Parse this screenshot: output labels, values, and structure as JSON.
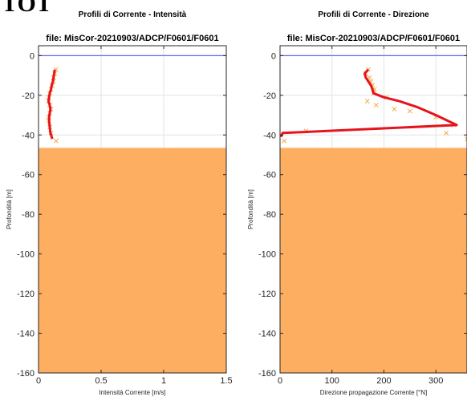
{
  "page": {
    "heading_fragment": "TOT"
  },
  "chart_data": [
    {
      "type": "line",
      "title": "Profili di Corrente - Intensità",
      "subtitle": "file: MisCor-20210903/ADCP/F0601/F0601",
      "xlabel": "Intensità  Corrente [m/s]",
      "ylabel": "Profondità  [m]",
      "xlim": [
        0,
        1.5
      ],
      "ylim": [
        -160,
        5
      ],
      "xticks": [
        "0",
        "0.5",
        "1",
        "1.5"
      ],
      "yticks": [
        "0",
        "-20",
        "-40",
        "-60",
        "-80",
        "-100",
        "-120",
        "-140",
        "-160"
      ],
      "grid": true,
      "surface_line": {
        "y": 0,
        "color": "#5b6cf0"
      },
      "seabed": {
        "top": -46.5,
        "color": "#fdae61"
      },
      "series": [
        {
          "style": "markers",
          "marker": "x",
          "color": "#f7a84a",
          "x": [
            0.14,
            0.13,
            0.12,
            0.12,
            0.11,
            0.1,
            0.09,
            0.08,
            0.08,
            0.09,
            0.1,
            0.09,
            0.08,
            0.08,
            0.09,
            0.1,
            0.14
          ],
          "y": [
            -7,
            -9,
            -11,
            -13,
            -15,
            -17,
            -19,
            -21,
            -23,
            -25,
            -27,
            -29,
            -31,
            -33,
            -36,
            -39,
            -43
          ]
        },
        {
          "style": "line",
          "color": "#e6141d",
          "x": [
            0.13,
            0.125,
            0.12,
            0.115,
            0.105,
            0.1,
            0.09,
            0.085,
            0.08,
            0.09,
            0.095,
            0.09,
            0.085,
            0.085,
            0.09,
            0.095,
            0.11
          ],
          "y": [
            -7,
            -9,
            -11,
            -13,
            -15,
            -17,
            -19,
            -21,
            -23,
            -25,
            -27,
            -29,
            -31,
            -33,
            -36,
            -39,
            -42
          ]
        }
      ]
    },
    {
      "type": "line",
      "title": "Profili di Corrente - Direzione",
      "subtitle": "file: MisCor-20210903/ADCP/F0601/F0601",
      "xlabel": "Direzione propagazione Corrente [°N]",
      "ylabel": "Profondità  [m]",
      "xlim": [
        0,
        360
      ],
      "ylim": [
        -160,
        5
      ],
      "xticks": [
        "0",
        "100",
        "200",
        "300"
      ],
      "xtick_values": [
        0,
        100,
        200,
        300
      ],
      "yticks": [
        "0",
        "-20",
        "-40",
        "-60",
        "-80",
        "-100",
        "-120",
        "-140",
        "-160"
      ],
      "grid": true,
      "surface_line": {
        "y": 0,
        "color": "#5b6cf0"
      },
      "seabed": {
        "top": -46.5,
        "color": "#fdae61"
      },
      "series": [
        {
          "style": "markers",
          "marker": "x",
          "color": "#f7a84a",
          "x": [
            170,
            165,
            172,
            175,
            178,
            182,
            180,
            168,
            205,
            185,
            220,
            250,
            300,
            335,
            320,
            50,
            8,
            360
          ],
          "y": [
            -7,
            -9,
            -11,
            -13,
            -15,
            -17,
            -19,
            -23,
            -21,
            -25,
            -27,
            -28,
            -31,
            -35,
            -39,
            -38,
            -43,
            -42
          ]
        },
        {
          "style": "line",
          "color": "#e6141d",
          "x": [
            170,
            163,
            165,
            170,
            175,
            178,
            180,
            200,
            230,
            265,
            300,
            340,
            5,
            2
          ],
          "y": [
            -7,
            -9,
            -11,
            -13,
            -15,
            -17,
            -19,
            -21,
            -23,
            -26,
            -30,
            -35,
            -39,
            -41
          ]
        }
      ]
    }
  ]
}
